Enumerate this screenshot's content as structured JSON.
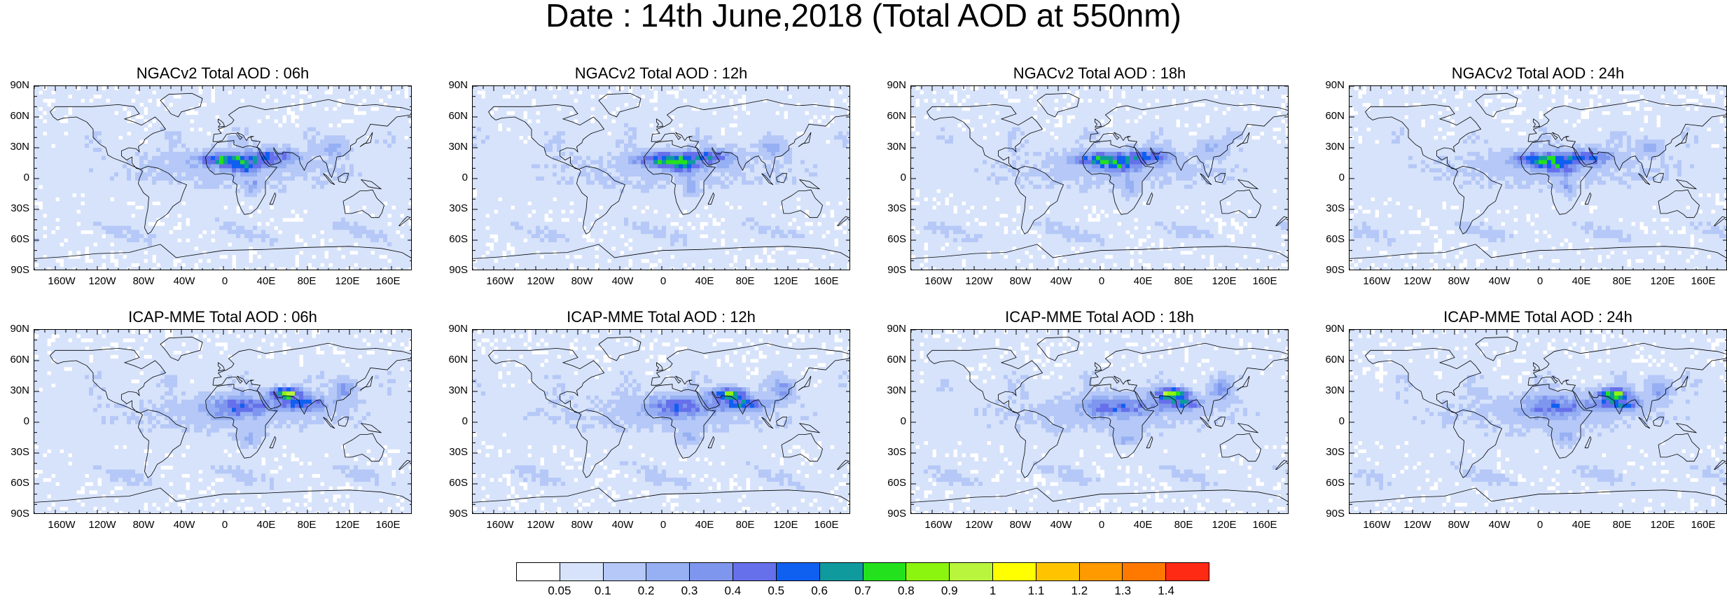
{
  "title": "Date : 14th June,2018 (Total AOD at 550nm)",
  "latitude_labels": [
    "90N",
    "60N",
    "30N",
    "0",
    "30S",
    "60S",
    "90S"
  ],
  "longitude_labels": [
    "160W",
    "120W",
    "80W",
    "40W",
    "0",
    "40E",
    "80E",
    "120E",
    "160E"
  ],
  "panels": [
    {
      "title": "NGACv2 Total AOD : 06h",
      "model": "NGACv2",
      "forecast_hour": "06h"
    },
    {
      "title": "NGACv2 Total AOD : 12h",
      "model": "NGACv2",
      "forecast_hour": "12h"
    },
    {
      "title": "NGACv2 Total AOD : 18h",
      "model": "NGACv2",
      "forecast_hour": "18h"
    },
    {
      "title": "NGACv2 Total AOD : 24h",
      "model": "NGACv2",
      "forecast_hour": "24h"
    },
    {
      "title": "ICAP-MME Total AOD : 06h",
      "model": "ICAP-MME",
      "forecast_hour": "06h"
    },
    {
      "title": "ICAP-MME Total AOD : 12h",
      "model": "ICAP-MME",
      "forecast_hour": "12h"
    },
    {
      "title": "ICAP-MME Total AOD : 18h",
      "model": "ICAP-MME",
      "forecast_hour": "18h"
    },
    {
      "title": "ICAP-MME Total AOD : 24h",
      "model": "ICAP-MME",
      "forecast_hour": "24h"
    }
  ],
  "colorbar": {
    "labels": [
      "0.05",
      "0.1",
      "0.2",
      "0.3",
      "0.4",
      "0.5",
      "0.6",
      "0.7",
      "0.8",
      "0.9",
      "1",
      "1.1",
      "1.2",
      "1.3",
      "1.4"
    ],
    "colors": [
      "#ffffff",
      "#d7e3fb",
      "#b5c8f7",
      "#96b0f3",
      "#7f96ee",
      "#6570ea",
      "#0f5ff0",
      "#0f9a9e",
      "#24e11d",
      "#8cf50f",
      "#b8f53c",
      "#ffff00",
      "#ffc300",
      "#ff9a00",
      "#ff7800",
      "#ff2a14"
    ]
  }
}
